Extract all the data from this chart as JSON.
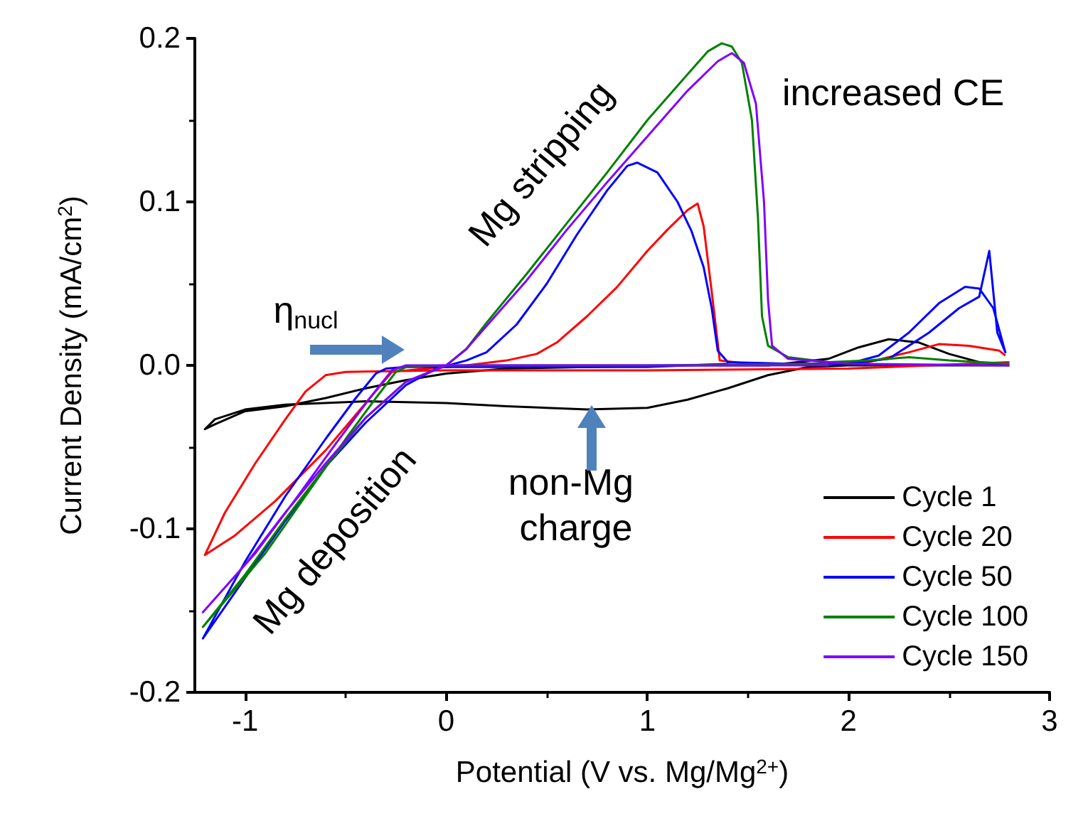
{
  "chart_data": {
    "type": "line",
    "xlabel": "Potential (V vs. Mg/Mg$^{2+}$)",
    "ylabel": "Current Density (mA/cm$^{2}$)",
    "xlim": [
      -1.25,
      3
    ],
    "xticks": [
      -1,
      0,
      1,
      2,
      3
    ],
    "ylim": [
      -0.2,
      0.2
    ],
    "yticks": [
      -0.2,
      -0.1,
      {
        "value": 0,
        "label": "0.0"
      },
      0.1,
      0.2
    ],
    "grid": false,
    "legend": "bottom right",
    "series": [
      {
        "name": "Cycle 1",
        "color": "#000000",
        "x": [
          2.8,
          2.4,
          2.0,
          1.8,
          1.6,
          1.4,
          1.2,
          1.0,
          0.7,
          0.3,
          0.0,
          -0.4,
          -0.8,
          -1.0,
          -1.15,
          -1.2,
          -1.15,
          -1.0,
          -0.8,
          -0.6,
          -0.4,
          -0.2,
          0.0,
          0.3,
          0.7,
          1.2,
          1.6,
          1.9,
          2.05,
          2.2,
          2.35,
          2.5,
          2.65,
          2.78
        ],
        "values": [
          0.0,
          0.0,
          0.0,
          -0.001,
          -0.006,
          -0.014,
          -0.021,
          -0.026,
          -0.027,
          -0.025,
          -0.023,
          -0.022,
          -0.024,
          -0.027,
          -0.033,
          -0.039,
          -0.036,
          -0.028,
          -0.025,
          -0.02,
          -0.014,
          -0.009,
          -0.005,
          -0.002,
          -0.001,
          0.0,
          0.0,
          0.004,
          0.011,
          0.016,
          0.014,
          0.007,
          0.002,
          0.0
        ]
      },
      {
        "name": "Cycle 20",
        "color": "#ff0000",
        "x": [
          2.8,
          2.0,
          1.0,
          0.0,
          -0.5,
          -0.6,
          -0.7,
          -0.8,
          -0.95,
          -1.1,
          -1.2,
          -1.05,
          -0.85,
          -0.6,
          -0.4,
          -0.27,
          -0.1,
          0.1,
          0.3,
          0.45,
          0.55,
          0.7,
          0.85,
          1.0,
          1.1,
          1.2,
          1.25,
          1.28,
          1.32,
          1.36,
          1.5,
          1.8,
          2.1,
          2.3,
          2.45,
          2.6,
          2.75,
          2.78
        ],
        "values": [
          0.002,
          -0.002,
          -0.003,
          -0.003,
          -0.004,
          -0.006,
          -0.016,
          -0.033,
          -0.06,
          -0.09,
          -0.116,
          -0.104,
          -0.083,
          -0.052,
          -0.023,
          -0.004,
          -0.002,
          0.0,
          0.003,
          0.007,
          0.014,
          0.03,
          0.048,
          0.07,
          0.083,
          0.095,
          0.099,
          0.085,
          0.045,
          0.003,
          0.001,
          0.001,
          0.002,
          0.008,
          0.013,
          0.012,
          0.009,
          0.006
        ]
      },
      {
        "name": "Cycle 50",
        "color": "#0000ff",
        "x": [
          1.4,
          1.0,
          0.0,
          -0.2,
          -0.3,
          -0.35,
          -0.45,
          -0.6,
          -0.8,
          -1.0,
          -1.21,
          -1.0,
          -0.8,
          -0.6,
          -0.4,
          -0.2,
          -0.05,
          0.1,
          0.2,
          0.35,
          0.5,
          0.65,
          0.8,
          0.9,
          0.95,
          1.05,
          1.15,
          1.22,
          1.28,
          1.32,
          1.35,
          1.4,
          1.7,
          2.0,
          2.2,
          2.4,
          2.55,
          2.65,
          2.7,
          2.74,
          2.78,
          2.72,
          2.65,
          2.58,
          2.45,
          2.3,
          2.15,
          2.0
        ],
        "values": [
          0.001,
          -0.001,
          -0.001,
          -0.001,
          -0.002,
          -0.005,
          -0.02,
          -0.045,
          -0.08,
          -0.12,
          -0.167,
          -0.13,
          -0.095,
          -0.062,
          -0.035,
          -0.012,
          -0.002,
          0.003,
          0.008,
          0.025,
          0.05,
          0.08,
          0.107,
          0.122,
          0.124,
          0.118,
          0.1,
          0.082,
          0.06,
          0.035,
          0.009,
          0.002,
          0.001,
          0.001,
          0.004,
          0.02,
          0.035,
          0.042,
          0.07,
          0.02,
          0.008,
          0.035,
          0.047,
          0.048,
          0.038,
          0.02,
          0.006,
          0.001
        ]
      },
      {
        "name": "Cycle 100",
        "color": "#008000",
        "x": [
          1.9,
          1.0,
          0.0,
          -0.2,
          -0.25,
          -0.35,
          -0.5,
          -0.7,
          -0.9,
          -1.21,
          -1.0,
          -0.8,
          -0.6,
          -0.4,
          -0.2,
          0.0,
          0.1,
          0.2,
          0.4,
          0.6,
          0.8,
          1.0,
          1.2,
          1.3,
          1.37,
          1.42,
          1.47,
          1.52,
          1.55,
          1.57,
          1.6,
          1.7,
          1.9,
          2.1,
          2.3,
          2.5,
          2.8
        ],
        "values": [
          0.001,
          0.0,
          0.0,
          -0.001,
          -0.004,
          -0.02,
          -0.045,
          -0.08,
          -0.115,
          -0.16,
          -0.128,
          -0.094,
          -0.062,
          -0.032,
          -0.01,
          0.0,
          0.01,
          0.026,
          0.056,
          0.087,
          0.118,
          0.15,
          0.178,
          0.192,
          0.197,
          0.195,
          0.185,
          0.15,
          0.09,
          0.03,
          0.012,
          0.005,
          0.002,
          0.003,
          0.005,
          0.003,
          0.001
        ]
      },
      {
        "name": "Cycle 150",
        "color": "#8000ff",
        "x": [
          1.9,
          1.0,
          0.0,
          -0.2,
          -0.27,
          -0.38,
          -0.55,
          -0.75,
          -0.95,
          -1.21,
          -1.0,
          -0.8,
          -0.6,
          -0.4,
          -0.2,
          0.0,
          0.1,
          0.2,
          0.4,
          0.6,
          0.8,
          1.0,
          1.2,
          1.35,
          1.42,
          1.48,
          1.54,
          1.58,
          1.6,
          1.62,
          1.7,
          2.0,
          2.8
        ],
        "values": [
          0.0,
          0.0,
          0.0,
          0.0,
          -0.003,
          -0.02,
          -0.048,
          -0.082,
          -0.115,
          -0.151,
          -0.122,
          -0.09,
          -0.06,
          -0.032,
          -0.01,
          0.0,
          0.01,
          0.024,
          0.052,
          0.083,
          0.112,
          0.14,
          0.168,
          0.186,
          0.191,
          0.185,
          0.16,
          0.1,
          0.04,
          0.012,
          0.004,
          0.001,
          0.0
        ]
      }
    ],
    "annotations": [
      "increased CE",
      "Mg stripping",
      "Mg deposition",
      "η$_{nucl}$",
      "non-Mg charge"
    ]
  }
}
